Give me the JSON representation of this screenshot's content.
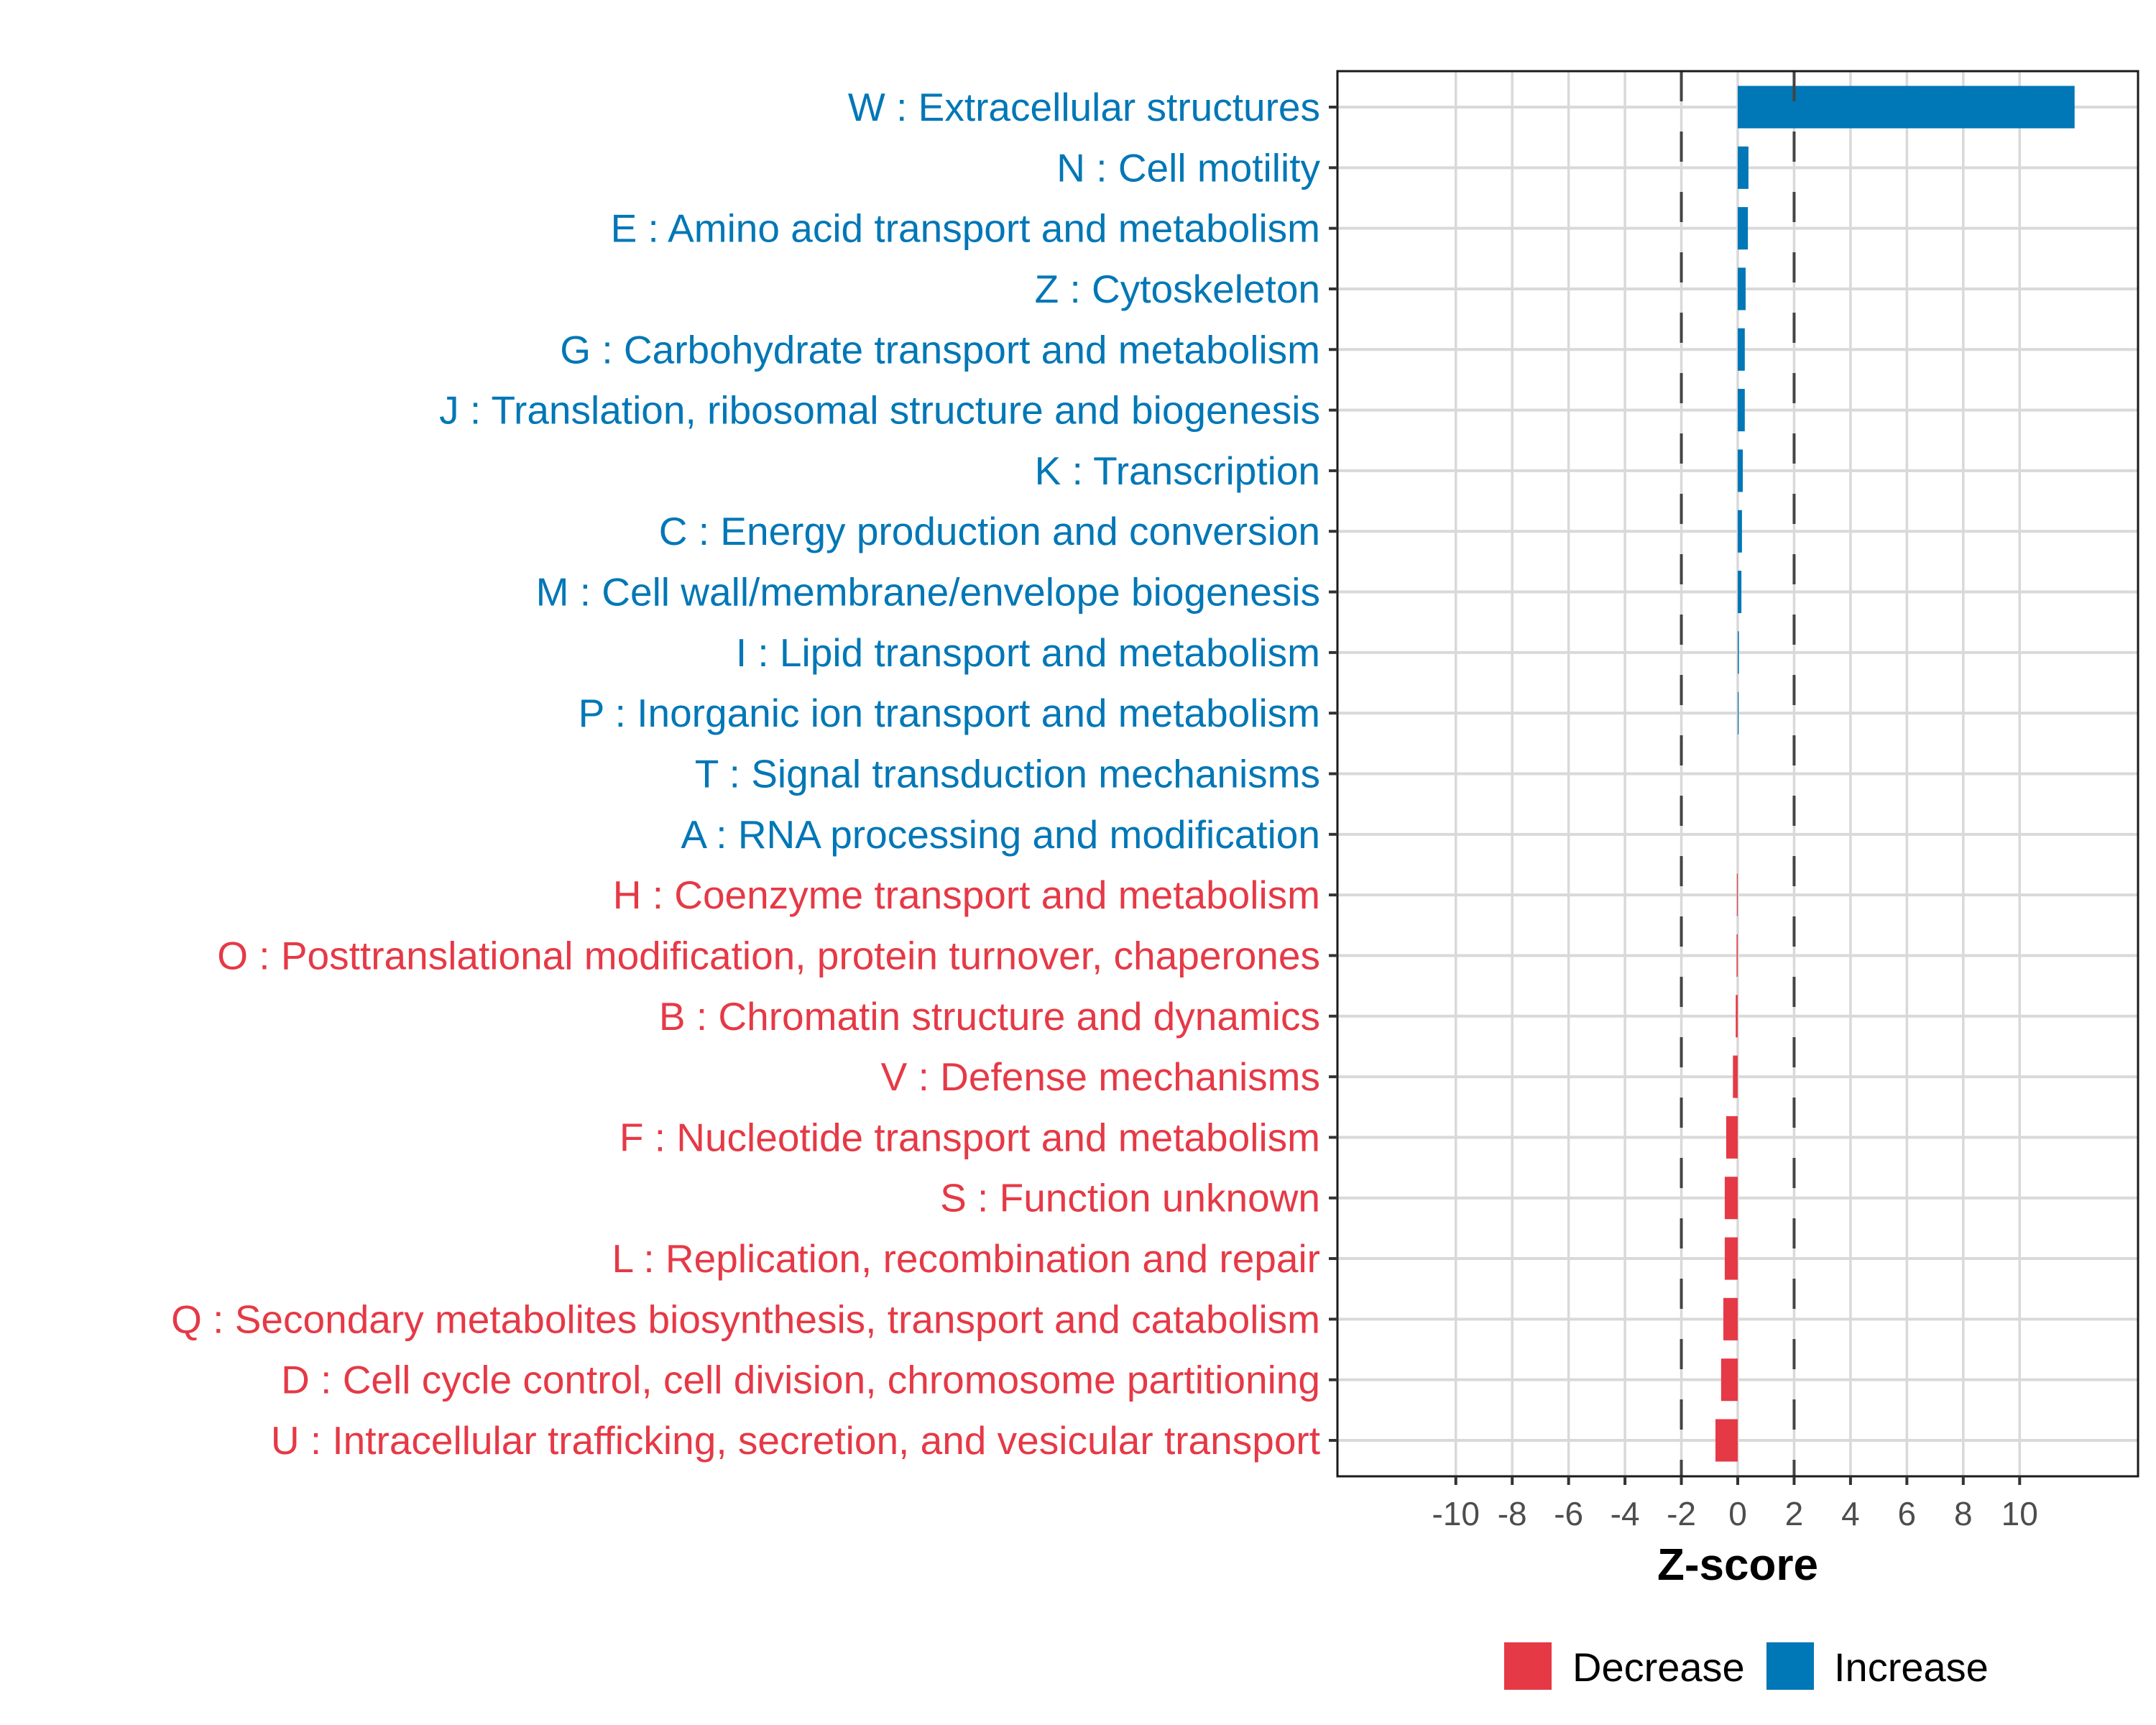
{
  "chart_data": {
    "type": "bar",
    "orientation": "horizontal",
    "title": "",
    "xlabel": "Z-score",
    "ylabel": "",
    "xlim": [
      -14.2,
      14.2
    ],
    "xticks": [
      -10,
      -8,
      -6,
      -4,
      -2,
      0,
      2,
      4,
      6,
      8,
      10
    ],
    "reference_lines": [
      -2,
      2
    ],
    "grid": true,
    "legend": {
      "position": "bottom",
      "entries": [
        {
          "label": "Decrease",
          "color": "#E63946"
        },
        {
          "label": "Increase",
          "color": "#0077B6"
        }
      ]
    },
    "categories": [
      "W : Extracellular structures",
      "N : Cell motility",
      "E : Amino acid transport and metabolism",
      "Z : Cytoskeleton",
      "G : Carbohydrate transport and metabolism",
      "J : Translation, ribosomal structure and biogenesis",
      "K : Transcription",
      "C : Energy production and conversion",
      "M : Cell wall/membrane/envelope biogenesis",
      "I : Lipid transport and metabolism",
      "P : Inorganic ion transport and metabolism",
      "T : Signal transduction mechanisms",
      "A : RNA processing and modification",
      "H : Coenzyme transport and metabolism",
      "O : Posttranslational modification, protein turnover, chaperones",
      "B : Chromatin structure and dynamics",
      "V : Defense mechanisms",
      "F : Nucleotide transport and metabolism",
      "S : Function unknown",
      "L : Replication, recombination and repair",
      "Q : Secondary metabolites biosynthesis, transport and catabolism",
      "D : Cell cycle control, cell division, chromosome partitioning",
      "U : Intracellular trafficking, secretion, and vesicular transport"
    ],
    "values": [
      11.95,
      0.38,
      0.36,
      0.28,
      0.25,
      0.25,
      0.18,
      0.15,
      0.13,
      0.04,
      0.03,
      0.0,
      0.0,
      -0.03,
      -0.04,
      -0.07,
      -0.17,
      -0.41,
      -0.46,
      -0.46,
      -0.51,
      -0.59,
      -0.79
    ],
    "groups": [
      "Increase",
      "Increase",
      "Increase",
      "Increase",
      "Increase",
      "Increase",
      "Increase",
      "Increase",
      "Increase",
      "Increase",
      "Increase",
      "Increase",
      "Increase",
      "Decrease",
      "Decrease",
      "Decrease",
      "Decrease",
      "Decrease",
      "Decrease",
      "Decrease",
      "Decrease",
      "Decrease",
      "Decrease"
    ]
  }
}
